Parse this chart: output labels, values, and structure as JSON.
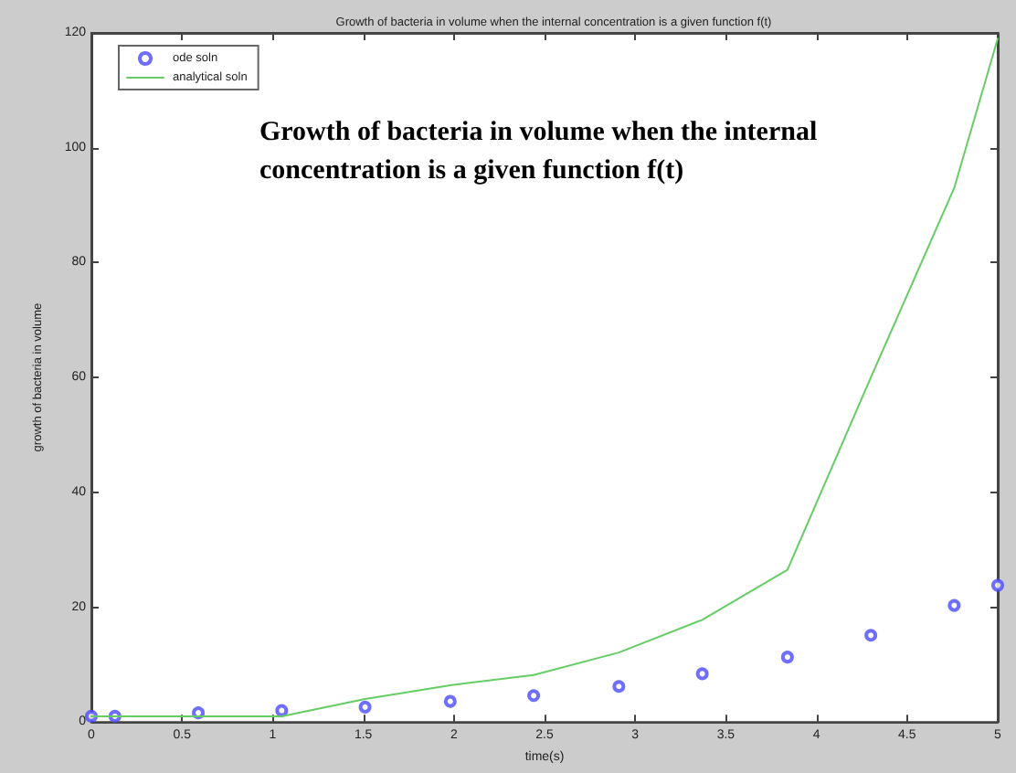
{
  "chart_data": {
    "type": "line",
    "title": "Growth of bacteria in volume when the internal concentration is a given function f(t)",
    "xlabel": "time(s)",
    "ylabel": "growth of bacteria in volume",
    "annotations": [
      "Growth of bacteria in volume when the internal concentration is a given function f(t)"
    ],
    "x": [
      0,
      0.13,
      0.59,
      1.05,
      1.51,
      1.98,
      2.44,
      2.91,
      3.37,
      3.84,
      4.3,
      4.76,
      5
    ],
    "series": [
      {
        "name": "ode soln",
        "type": "scatter",
        "color": "#4a4aff",
        "marker": "circle",
        "values": [
          1,
          1,
          1.6,
          2,
          2.6,
          3.6,
          4.6,
          6.2,
          8.4,
          11.3,
          15.1,
          20.3,
          23.8
        ]
      },
      {
        "name": "analytical soln",
        "color": "#66cc66",
        "marker": "none",
        "line_style": "solid",
        "values": [
          1,
          1,
          1,
          1,
          4,
          6.4,
          8.2,
          12.1,
          17.8,
          26.5,
          60,
          93,
          119
        ]
      }
    ],
    "xlim": [
      0,
      5
    ],
    "xticks": [
      0,
      0.5,
      1,
      1.5,
      2,
      2.5,
      3,
      3.5,
      4,
      4.5,
      5
    ],
    "ylim": [
      0,
      120
    ],
    "yticks": [
      0,
      20,
      40,
      60,
      80,
      100,
      120
    ],
    "grid": false,
    "legend": "top left"
  }
}
